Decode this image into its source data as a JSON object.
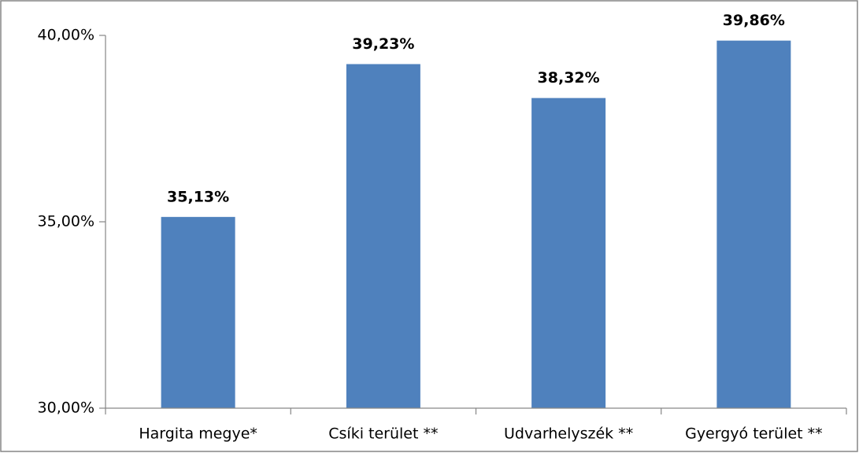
{
  "chart_data": {
    "type": "bar",
    "categories": [
      "Hargita megye*",
      "Csíki terület **",
      "Udvarhelyszék **",
      "Gyergyó terület **"
    ],
    "values": [
      35.13,
      39.23,
      38.32,
      39.86
    ],
    "value_labels": [
      "35,13%",
      "39,23%",
      "38,32%",
      "39,86%"
    ],
    "color": "#4f81bd",
    "ylim": [
      30,
      40
    ],
    "yticks": [
      {
        "value": 30,
        "label": "30,00%"
      },
      {
        "value": 35,
        "label": "35,00%"
      },
      {
        "value": 40,
        "label": "40,00%"
      }
    ],
    "grid": false
  }
}
